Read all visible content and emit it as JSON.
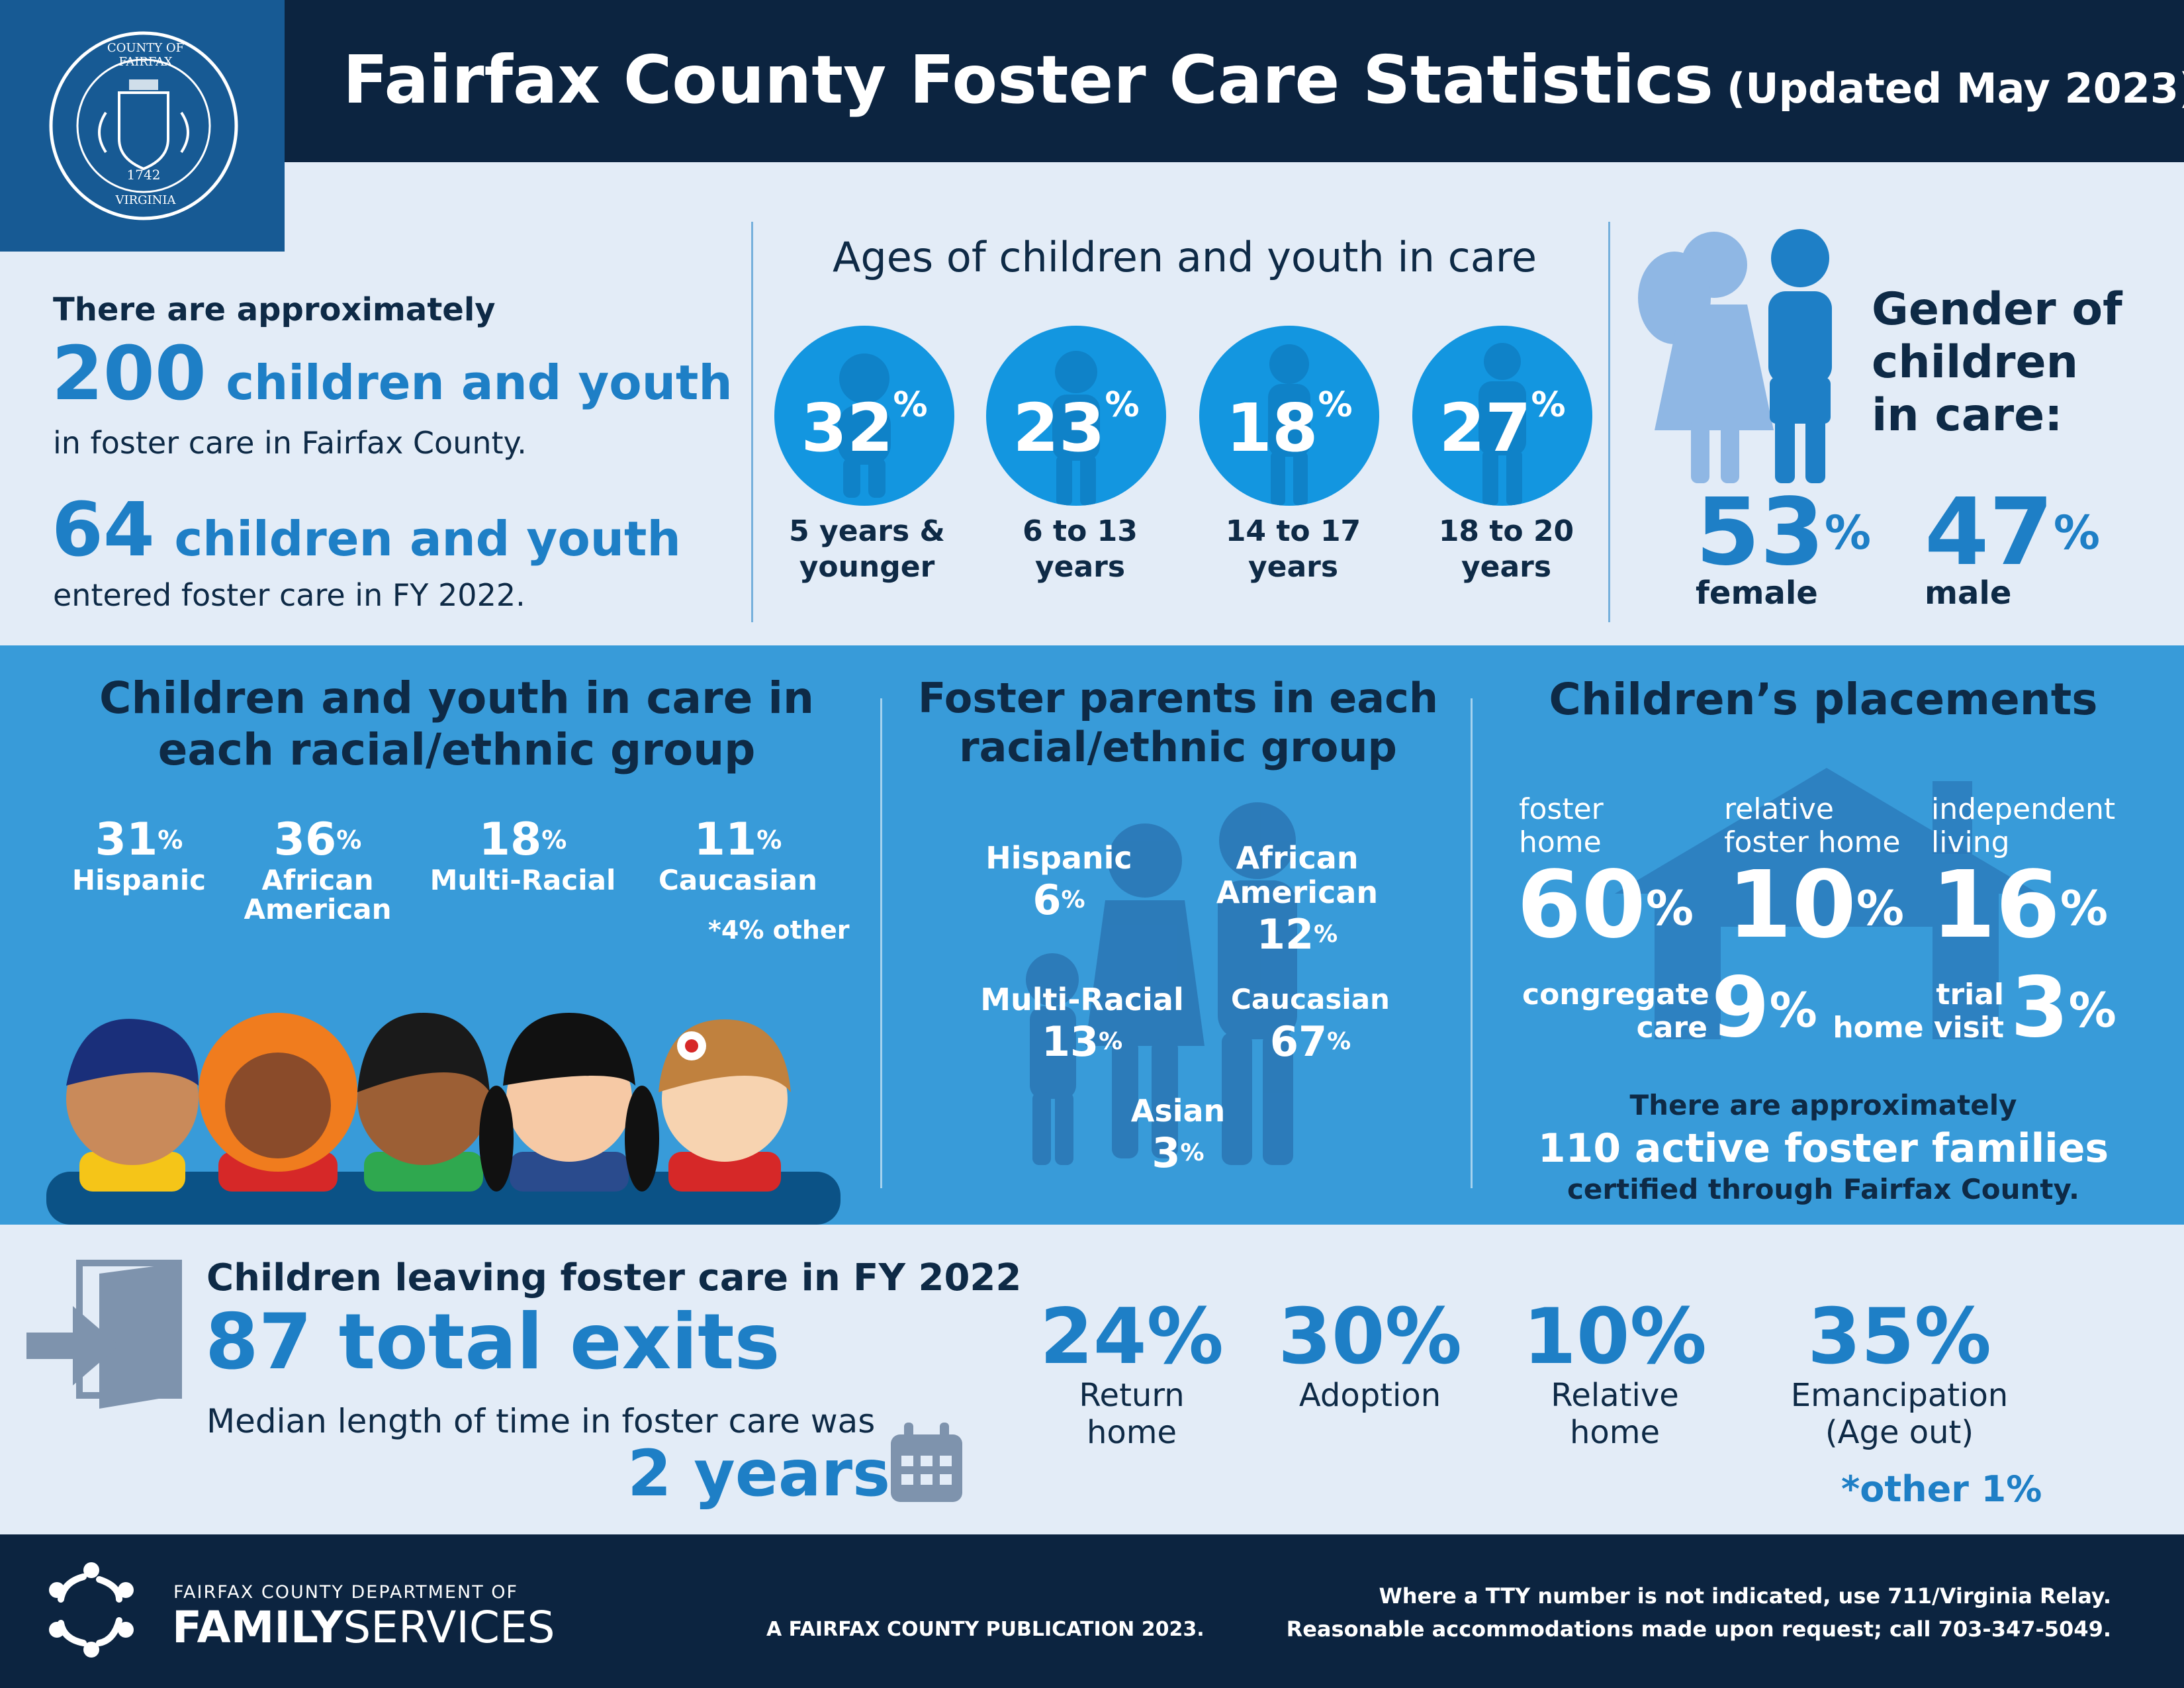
{
  "header": {
    "title": "Fairfax County Foster Care Statistics",
    "subtitle": "(Updated May 2023)",
    "seal": {
      "top_text": "COUNTY OF FAIRFAX",
      "year": "1742",
      "bottom_text": "VIRGINIA"
    }
  },
  "overview": {
    "intro": "There are approximately",
    "count_in_care": "200",
    "count_in_care_label": "children and youth",
    "in_care_text": "in foster care in Fairfax County.",
    "entered_count": "64",
    "entered_label": "children and youth",
    "entered_text": "entered foster care in FY 2022."
  },
  "ages": {
    "title": "Ages of children and youth in care",
    "groups": [
      {
        "pct": "32",
        "label_1": "5 years &",
        "label_2": "younger"
      },
      {
        "pct": "23",
        "label_1": "6 to 13",
        "label_2": "years"
      },
      {
        "pct": "18",
        "label_1": "14 to 17",
        "label_2": "years"
      },
      {
        "pct": "27",
        "label_1": "18 to 20",
        "label_2": "years"
      }
    ],
    "pct_sign": "%"
  },
  "gender": {
    "title_1": "Gender of",
    "title_2": "children",
    "title_3": "in care:",
    "female_pct": "53",
    "female_label": "female",
    "male_pct": "47",
    "male_label": "male"
  },
  "race_children": {
    "title_1": "Children and youth in care in",
    "title_2": "each racial/ethnic group",
    "groups": [
      {
        "pct": "31",
        "label_1": "Hispanic",
        "label_2": ""
      },
      {
        "pct": "36",
        "label_1": "African",
        "label_2": "American"
      },
      {
        "pct": "18",
        "label_1": "Multi-Racial",
        "label_2": ""
      },
      {
        "pct": "11",
        "label_1": "Caucasian",
        "label_2": ""
      }
    ],
    "note": "*4% other"
  },
  "race_parents": {
    "title_1": "Foster parents in each",
    "title_2": "racial/ethnic group",
    "hispanic": {
      "label": "Hispanic",
      "pct": "6"
    },
    "african_american": {
      "label_1": "African",
      "label_2": "American",
      "pct": "12"
    },
    "multi_racial": {
      "label": "Multi-Racial",
      "pct": "13"
    },
    "caucasian": {
      "label": "Caucasian",
      "pct": "67"
    },
    "asian": {
      "label": "Asian",
      "pct": "3"
    }
  },
  "placements": {
    "title": "Children’s placements",
    "foster_home": {
      "label_1": "foster",
      "label_2": "home",
      "pct": "60"
    },
    "relative_foster_home": {
      "label_1": "relative",
      "label_2": "foster home",
      "pct": "10"
    },
    "independent_living": {
      "label_1": "independent",
      "label_2": "living",
      "pct": "16"
    },
    "congregate_care": {
      "label_1": "congregate",
      "label_2": "care",
      "pct": "9"
    },
    "trial_home_visit": {
      "label_1": "trial",
      "label_2": "home visit",
      "pct": "3"
    },
    "families_intro": "There are approximately",
    "families_count": "110 active foster families",
    "families_text": "certified through Fairfax County."
  },
  "exits": {
    "title": "Children leaving foster care in FY 2022",
    "total": "87 total exits",
    "median_text": "Median length of time in foster care was",
    "median_value": "2 years",
    "outcomes": [
      {
        "pct": "24%",
        "label_1": "Return",
        "label_2": "home"
      },
      {
        "pct": "30%",
        "label_1": "Adoption",
        "label_2": ""
      },
      {
        "pct": "10%",
        "label_1": "Relative",
        "label_2": "home"
      },
      {
        "pct": "35%",
        "label_1": "Emancipation",
        "label_2": "(Age out)"
      }
    ],
    "other_note": "*other 1%"
  },
  "footer": {
    "dept_line": "FAIRFAX COUNTY DEPARTMENT OF",
    "dept_bold": "FAMILY",
    "dept_light": "SERVICES",
    "publication": "A FAIRFAX COUNTY PUBLICATION 2023.",
    "tty": "Where a TTY number is not indicated, use 711/Virginia Relay.",
    "accommodations": "Reasonable accommodations made upon request; call 703-347-5049."
  },
  "colors": {
    "navy": "#0c2440",
    "blue": "#1e7fc6",
    "circle": "#1396e0",
    "mid_band": "#389bd9",
    "light_bg": "#e3ecf7"
  }
}
